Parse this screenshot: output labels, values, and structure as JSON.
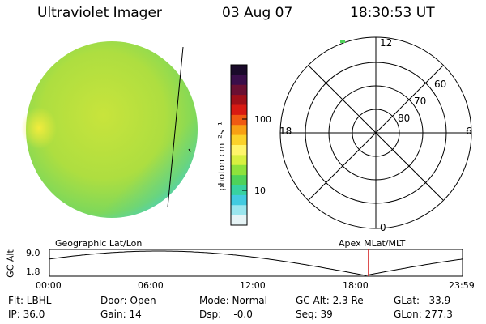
{
  "header": {
    "title": "Ultraviolet Imager",
    "date": "03 Aug 07",
    "time": "18:30:53 UT"
  },
  "colorbar": {
    "unit_label": "photon cm⁻²s⁻¹",
    "ticks": [
      "100",
      "10"
    ],
    "colors": [
      "#1a0a2a",
      "#3a0e4a",
      "#6a1032",
      "#a01018",
      "#d81a12",
      "#f05a12",
      "#f8a014",
      "#fbd22a",
      "#fff56a",
      "#d8f040",
      "#8ee23c",
      "#4ed25a",
      "#38d2a0",
      "#42cbe0",
      "#9ae6ee",
      "#e6f4f6"
    ]
  },
  "polar": {
    "mlt_labels": {
      "top": "12",
      "left": "18",
      "right": "6",
      "bottom": "0"
    },
    "lat_labels": [
      "60",
      "70",
      "80"
    ]
  },
  "timeline": {
    "left_title": "Geographic Lat/Lon",
    "right_title": "Apex MLat/MLT",
    "y_axis_label": "GC Alt",
    "y_ticks": [
      "9.0",
      "1.8"
    ],
    "x_ticks": [
      "00:00",
      "06:00",
      "12:00",
      "18:00",
      "23:59"
    ],
    "marker_time": "18:30:53",
    "marker_color": "#d42020"
  },
  "status": {
    "flt": "Flt: LBHL",
    "ip": "IP: 36.0",
    "door": "Door: Open",
    "gain": "Gain: 14",
    "mode": "Mode: Normal",
    "dsp": "Dsp:    -0.0",
    "gcalt": "GC Alt: 2.3 Re",
    "seq": "Seq: 39",
    "glat": "GLat:   33.9",
    "glon": "GLon: 277.3"
  }
}
